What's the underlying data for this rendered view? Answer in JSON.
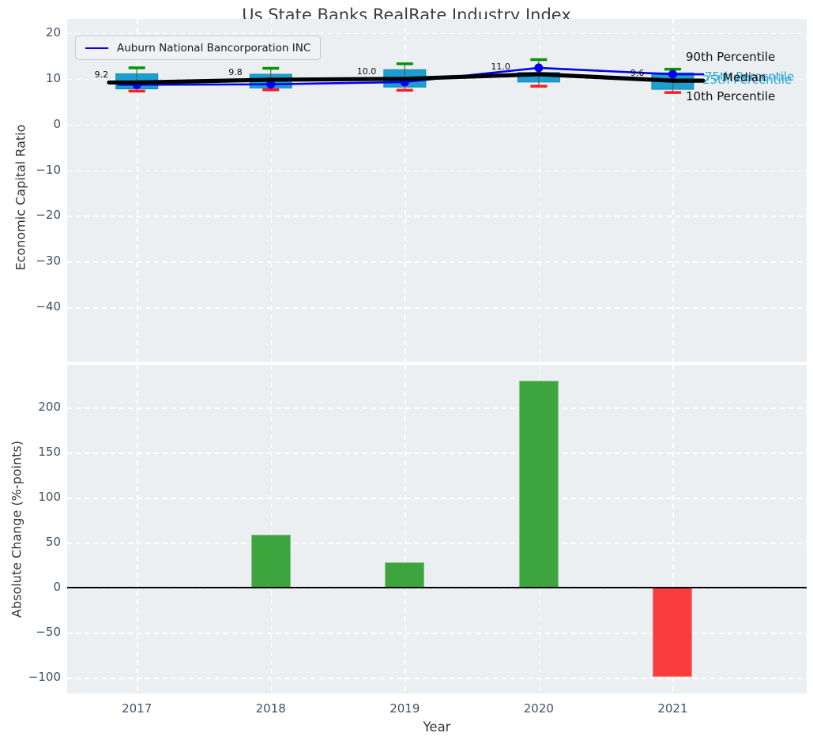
{
  "title": "Us State Banks RealRate Industry Index",
  "legend": {
    "series_label": "Auburn National Bancorporation INC"
  },
  "annotations": {
    "p90": "90th Percentile",
    "p75": "75th Percentile",
    "median": "Median",
    "p25": "25th Percentile",
    "p10": "10th Percentile"
  },
  "colors": {
    "figure_bg": "#ffffff",
    "axes_bg": "#eceff1",
    "grid": "#ffffff",
    "tick_label": "#3f5166",
    "axis_label": "#333333",
    "title": "#3c3c3c",
    "box_fill": "#1a9fd0",
    "box_edge": "#1388b4",
    "whisker": "#5a5a5a",
    "cap_top": "#069406",
    "cap_bottom": "#f81f1f",
    "median_line": "#000000",
    "company_line": "#0000ee",
    "bar_positive": "#3ea43e",
    "bar_negative": "#fb3c3c",
    "percentile_label": "#2ea8d8",
    "zero_line": "#000000"
  },
  "chart_data": [
    {
      "type": "line",
      "subtype": "line-with-percentile-boxes",
      "ylabel": "Economic Capital Ratio",
      "x": [
        2017,
        2018,
        2019,
        2020,
        2021
      ],
      "xlim": [
        2016.48,
        2022.0
      ],
      "ylim": [
        -51.9,
        23.1
      ],
      "yticks": [
        20,
        10,
        0,
        -10,
        -20,
        -30,
        -40
      ],
      "grid": true,
      "legend_position": "upper left",
      "series": [
        {
          "name": "Auburn National Bancorporation INC",
          "color": "#0000ee",
          "values": [
            8.7,
            8.8,
            9.3,
            12.4,
            11.0
          ]
        },
        {
          "name": "Median",
          "color": "#000000",
          "values": [
            9.2,
            9.8,
            10.0,
            11.0,
            9.6
          ]
        }
      ],
      "median_labels": [
        "9.2",
        "9.8",
        "10.0",
        "11.0",
        "9.6"
      ],
      "percentiles": {
        "p90": [
          12.4,
          12.3,
          13.3,
          14.2,
          12.1
        ],
        "p75": [
          11.1,
          11.0,
          12.0,
          11.4,
          11.3
        ],
        "p25": [
          7.8,
          8.0,
          8.2,
          9.3,
          7.7
        ],
        "p10": [
          7.3,
          7.6,
          7.5,
          8.4,
          7.0
        ]
      }
    },
    {
      "type": "bar",
      "ylabel": "Absolute Change (%-points)",
      "xlabel": "Year",
      "categories": [
        "2017",
        "2018",
        "2019",
        "2020",
        "2021"
      ],
      "x": [
        2017,
        2018,
        2019,
        2020,
        2021
      ],
      "values": [
        0,
        59,
        28,
        230,
        -99
      ],
      "bar_colors": [
        "#3ea43e",
        "#3ea43e",
        "#3ea43e",
        "#3ea43e",
        "#fb3c3c"
      ],
      "xlim": [
        2016.48,
        2022.0
      ],
      "ylim": [
        -117.5,
        247.4
      ],
      "yticks": [
        200,
        150,
        100,
        50,
        0,
        -50,
        -100
      ],
      "grid": true
    }
  ]
}
